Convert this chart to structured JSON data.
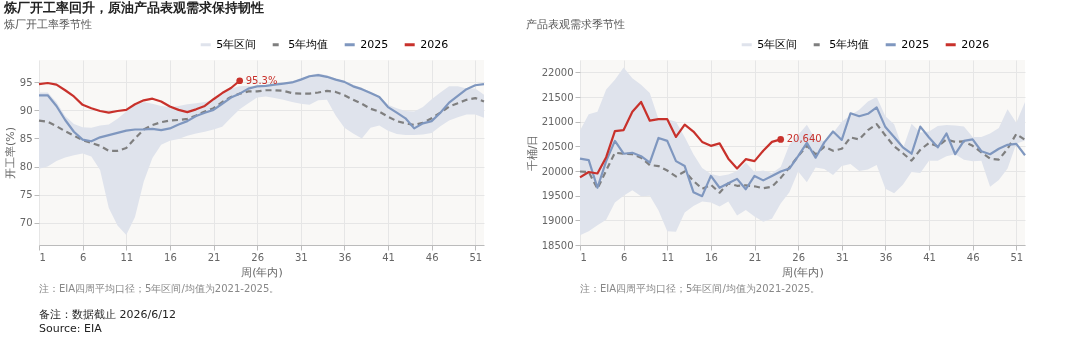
{
  "chart_data": [
    {
      "type": "other",
      "title": "炼厂开工率回升，原油产品表观需求保持韧性",
      "annotations": [
        "备注：数据截止 2026/6/12",
        "Source: EIA"
      ]
    },
    {
      "type": "line",
      "title": "炼厂开工率季节性",
      "xlabel": "周(年内)",
      "ylabel": "开工率(%)",
      "x": [
        1,
        2,
        3,
        4,
        5,
        6,
        7,
        8,
        9,
        10,
        11,
        12,
        13,
        14,
        15,
        16,
        17,
        18,
        19,
        20,
        21,
        22,
        23,
        24,
        25,
        26,
        27,
        28,
        29,
        30,
        31,
        32,
        33,
        34,
        35,
        36,
        37,
        38,
        39,
        40,
        41,
        42,
        43,
        44,
        45,
        46,
        47,
        48,
        49,
        50,
        51,
        52
      ],
      "xlim": [
        1,
        52
      ],
      "xticks": [
        1,
        6,
        11,
        16,
        21,
        26,
        31,
        36,
        41,
        46,
        51
      ],
      "ylim": [
        66,
        99
      ],
      "yticks": [
        70,
        75,
        80,
        85,
        90,
        95
      ],
      "grid": true,
      "legend": "top",
      "series": [
        {
          "name": "5年区间",
          "type": "area",
          "color": "#dfe3ec",
          "values": [
            null,
            null,
            null,
            null,
            null,
            null,
            null,
            null,
            null,
            null,
            null,
            null,
            null,
            null,
            null,
            null,
            null,
            null,
            null,
            null,
            null,
            null,
            null,
            null,
            null,
            null,
            null,
            null,
            null,
            null,
            null,
            null,
            null,
            null,
            null,
            null,
            null,
            null,
            null,
            null,
            null,
            null,
            null,
            null,
            null,
            null,
            null,
            null,
            null,
            null,
            null,
            null
          ],
          "lower": [
            79.6,
            80.0,
            81.0,
            81.6,
            82.0,
            82.3,
            81.8,
            79.4,
            72.6,
            69.5,
            67.8,
            71.0,
            77.3,
            81.5,
            83.9,
            84.6,
            84.9,
            85.5,
            85.9,
            86.2,
            86.6,
            87.1,
            88.7,
            90.2,
            91.3,
            92.3,
            92.5,
            92.2,
            91.9,
            91.5,
            91.2,
            91.0,
            91.8,
            91.9,
            89.1,
            86.9,
            85.9,
            85.0,
            86.9,
            87.3,
            86.4,
            85.8,
            85.6,
            85.6,
            85.7,
            86.0,
            87.2,
            88.2,
            88.8,
            89.3,
            89.3,
            88.7
          ],
          "upper": [
            93.2,
            93.2,
            91.5,
            89.0,
            87.6,
            87.0,
            86.9,
            87.3,
            87.5,
            88.5,
            89.8,
            91.1,
            91.5,
            91.2,
            90.8,
            90.6,
            90.8,
            91.1,
            91.3,
            91.5,
            91.8,
            92.8,
            93.9,
            94.3,
            94.4,
            94.1,
            94.3,
            94.6,
            94.8,
            95.2,
            95.7,
            96.3,
            96.6,
            96.3,
            95.7,
            95.2,
            94.6,
            94.0,
            93.3,
            92.6,
            91.0,
            90.4,
            89.9,
            89.8,
            90.6,
            92.0,
            93.2,
            94.3,
            94.3,
            93.9,
            93.9,
            92.8
          ]
        },
        {
          "name": "5年均值",
          "type": "line",
          "line_style": "dashed",
          "color": "#7f7f7f",
          "values": [
            88.2,
            88.0,
            87.2,
            86.3,
            85.5,
            84.7,
            84.2,
            83.7,
            82.8,
            82.8,
            83.3,
            85.0,
            86.6,
            87.4,
            87.9,
            88.2,
            88.3,
            88.5,
            89.1,
            89.8,
            90.4,
            91.5,
            92.4,
            93.0,
            93.4,
            93.4,
            93.6,
            93.6,
            93.5,
            93.1,
            93.0,
            93.0,
            93.2,
            93.5,
            93.3,
            92.7,
            91.9,
            91.2,
            90.3,
            89.8,
            88.9,
            88.1,
            87.7,
            87.4,
            87.8,
            88.6,
            89.6,
            90.7,
            91.3,
            91.9,
            92.2,
            91.6
          ]
        },
        {
          "name": "2025",
          "type": "line",
          "color": "#7f97bf",
          "values": [
            92.7,
            92.7,
            90.8,
            88.3,
            86.2,
            84.8,
            84.5,
            85.2,
            85.6,
            86.0,
            86.4,
            86.6,
            86.6,
            86.7,
            86.5,
            86.8,
            87.5,
            88.1,
            89.0,
            89.6,
            90.1,
            91.2,
            92.3,
            93.0,
            93.9,
            94.3,
            94.4,
            94.6,
            94.8,
            95.0,
            95.5,
            96.1,
            96.3,
            96.0,
            95.5,
            95.1,
            94.3,
            93.8,
            93.1,
            92.4,
            90.6,
            89.6,
            88.6,
            86.8,
            87.7,
            88.1,
            89.6,
            91.4,
            92.6,
            93.8,
            94.5,
            94.7
          ]
        },
        {
          "name": "2026",
          "type": "line",
          "color": "#c8312b",
          "x": [
            1,
            2,
            3,
            4,
            5,
            6,
            7,
            8,
            9,
            10,
            11,
            12,
            13,
            14,
            15,
            16,
            17,
            18,
            19,
            20,
            21,
            22,
            23,
            24
          ],
          "values": [
            94.7,
            94.9,
            94.6,
            93.6,
            92.5,
            91.0,
            90.4,
            89.9,
            89.6,
            89.9,
            90.1,
            91.1,
            91.8,
            92.1,
            91.6,
            90.7,
            90.1,
            89.7,
            90.2,
            90.8,
            92.0,
            93.1,
            94.0,
            95.3
          ]
        }
      ],
      "annotations": [
        {
          "text": "95.3%",
          "x": 24,
          "y": 95.3
        },
        "注：EIA四周平均口径；5年区间/均值为2021-2025。"
      ]
    },
    {
      "type": "line",
      "title": "产品表观需求季节性",
      "xlabel": "周(年内)",
      "ylabel": "千桶/日",
      "x": [
        1,
        2,
        3,
        4,
        5,
        6,
        7,
        8,
        9,
        10,
        11,
        12,
        13,
        14,
        15,
        16,
        17,
        18,
        19,
        20,
        21,
        22,
        23,
        24,
        25,
        26,
        27,
        28,
        29,
        30,
        31,
        32,
        33,
        34,
        35,
        36,
        37,
        38,
        39,
        40,
        41,
        42,
        43,
        44,
        45,
        46,
        47,
        48,
        49,
        50,
        51,
        52
      ],
      "xlim": [
        1,
        52
      ],
      "xticks": [
        1,
        6,
        11,
        16,
        21,
        26,
        31,
        36,
        41,
        46,
        51
      ],
      "ylim": [
        18500,
        22250
      ],
      "yticks": [
        18500,
        19000,
        19500,
        20000,
        20500,
        21000,
        21500,
        22000
      ],
      "grid": true,
      "legend": "top",
      "series": [
        {
          "name": "5年区间",
          "type": "area",
          "color": "#dfe3ec",
          "values": [
            null,
            null,
            null,
            null,
            null,
            null,
            null,
            null,
            null,
            null,
            null,
            null,
            null,
            null,
            null,
            null,
            null,
            null,
            null,
            null,
            null,
            null,
            null,
            null,
            null,
            null,
            null,
            null,
            null,
            null,
            null,
            null,
            null,
            null,
            null,
            null,
            null,
            null,
            null,
            null,
            null,
            null,
            null,
            null,
            null,
            null,
            null,
            null,
            null,
            null,
            null,
            null
          ],
          "lower": [
            18700,
            18780,
            18900,
            19010,
            19360,
            19500,
            19610,
            19490,
            19500,
            19200,
            18780,
            18770,
            19160,
            19290,
            19380,
            19360,
            19280,
            19380,
            19100,
            19210,
            19080,
            18970,
            19030,
            19340,
            19570,
            19990,
            19770,
            20070,
            20040,
            19920,
            20100,
            20140,
            20000,
            20030,
            20120,
            19640,
            19550,
            19720,
            19980,
            19960,
            20210,
            20210,
            20300,
            20340,
            20230,
            20200,
            20210,
            19680,
            19820,
            20050,
            20550,
            20620
          ],
          "upper": [
            20820,
            21150,
            21200,
            21650,
            21850,
            22100,
            21880,
            21750,
            21580,
            21050,
            21050,
            21000,
            20690,
            20340,
            20060,
            19940,
            19900,
            19930,
            20000,
            20170,
            19980,
            20010,
            19960,
            20080,
            20530,
            20730,
            20940,
            20640,
            20610,
            20770,
            21000,
            21130,
            21240,
            21410,
            21500,
            21110,
            20950,
            20450,
            20960,
            20780,
            20800,
            20910,
            20930,
            20920,
            20900,
            20690,
            20690,
            20760,
            20870,
            21250,
            20980,
            21400
          ]
        },
        {
          "name": "5年均值",
          "type": "line",
          "line_style": "dashed",
          "color": "#7f7f7f",
          "values": [
            19990,
            19980,
            19640,
            20010,
            20370,
            20350,
            20340,
            20270,
            20120,
            20100,
            20010,
            19890,
            19990,
            19800,
            19640,
            19720,
            19560,
            19750,
            19700,
            19710,
            19690,
            19650,
            19680,
            19860,
            20070,
            20300,
            20510,
            20340,
            20490,
            20410,
            20450,
            20680,
            20640,
            20830,
            20950,
            20720,
            20500,
            20360,
            20210,
            20430,
            20570,
            20500,
            20640,
            20590,
            20600,
            20510,
            20380,
            20250,
            20230,
            20450,
            20750,
            20630
          ]
        },
        {
          "name": "2025",
          "type": "line",
          "color": "#7f97bf",
          "values": [
            20250,
            20220,
            19660,
            20200,
            20610,
            20350,
            20370,
            20300,
            20170,
            20670,
            20610,
            20200,
            20100,
            19570,
            19490,
            19900,
            19660,
            19750,
            19840,
            19630,
            19900,
            19810,
            19900,
            19990,
            20050,
            20300,
            20570,
            20270,
            20580,
            20800,
            20630,
            21170,
            21110,
            21160,
            21290,
            20890,
            20690,
            20480,
            20350,
            20900,
            20680,
            20480,
            20760,
            20340,
            20610,
            20640,
            20400,
            20340,
            20450,
            20530,
            20550,
            20320
          ]
        },
        {
          "name": "2026",
          "type": "line",
          "color": "#c8312b",
          "x": [
            1,
            2,
            3,
            4,
            5,
            6,
            7,
            8,
            9,
            10,
            11,
            12,
            13,
            14,
            15,
            16,
            17,
            18,
            19,
            20,
            21,
            22,
            23,
            24
          ],
          "values": [
            19870,
            19980,
            19950,
            20280,
            20810,
            20830,
            21200,
            21400,
            21020,
            21050,
            21050,
            20690,
            20940,
            20800,
            20590,
            20510,
            20560,
            20250,
            20050,
            20240,
            20200,
            20410,
            20590,
            20640
          ]
        }
      ],
      "annotations": [
        {
          "text": "20,640",
          "x": 24,
          "y": 20640
        },
        "注：EIA四周平均口径；5年区间/均值为2021-2025。"
      ]
    }
  ]
}
